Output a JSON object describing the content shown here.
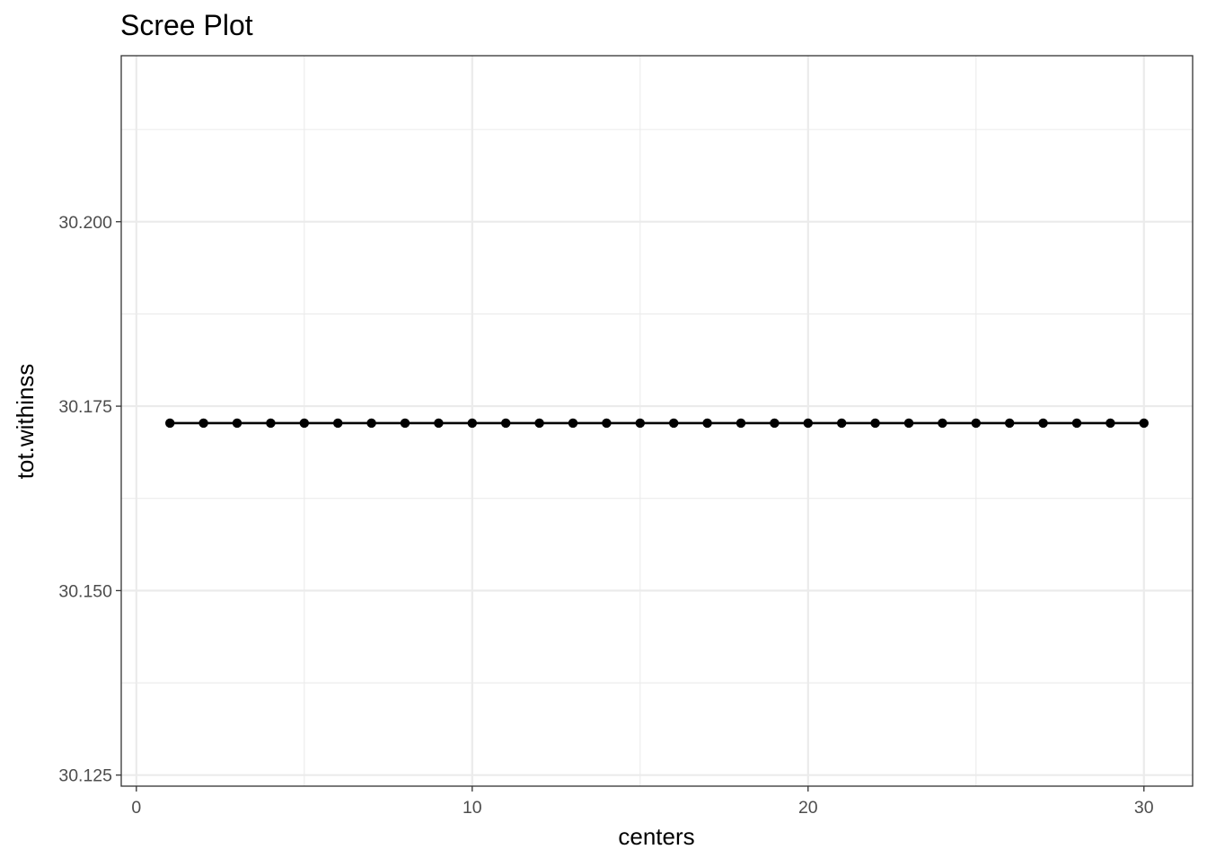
{
  "chart_data": {
    "type": "line",
    "title": "Scree Plot",
    "xlabel": "centers",
    "ylabel": "tot.withinss",
    "xlim": [
      -0.45,
      31.45
    ],
    "ylim": [
      30.1235,
      30.2225
    ],
    "x_major_ticks": [
      0,
      10,
      20,
      30
    ],
    "x_tick_labels": [
      "0",
      "10",
      "20",
      "30"
    ],
    "x_minor_ticks": [
      5,
      15,
      25
    ],
    "y_major_ticks": [
      30.125,
      30.15,
      30.175,
      30.2
    ],
    "y_tick_labels": [
      "30.125",
      "30.150",
      "30.175",
      "30.200"
    ],
    "y_minor_ticks": [
      30.1375,
      30.1625,
      30.1875,
      30.2125
    ],
    "grid": true,
    "legend": "none",
    "colors": {
      "line": "#000000",
      "point": "#000000",
      "grid_major": "#ebebeb",
      "grid_minor": "#ebebeb",
      "panel_border": "#333333",
      "tick_label": "#4d4d4d"
    },
    "series": [
      {
        "x": [
          1,
          2,
          3,
          4,
          5,
          6,
          7,
          8,
          9,
          10,
          11,
          12,
          13,
          14,
          15,
          16,
          17,
          18,
          19,
          20,
          21,
          22,
          23,
          24,
          25,
          26,
          27,
          28,
          29,
          30
        ],
        "values": [
          30.1727,
          30.1727,
          30.1727,
          30.1727,
          30.1727,
          30.1727,
          30.1727,
          30.1727,
          30.1727,
          30.1727,
          30.1727,
          30.1727,
          30.1727,
          30.1727,
          30.1727,
          30.1727,
          30.1727,
          30.1727,
          30.1727,
          30.1727,
          30.1727,
          30.1727,
          30.1727,
          30.1727,
          30.1727,
          30.1727,
          30.1727,
          30.1727,
          30.1727,
          30.1727
        ]
      }
    ]
  }
}
